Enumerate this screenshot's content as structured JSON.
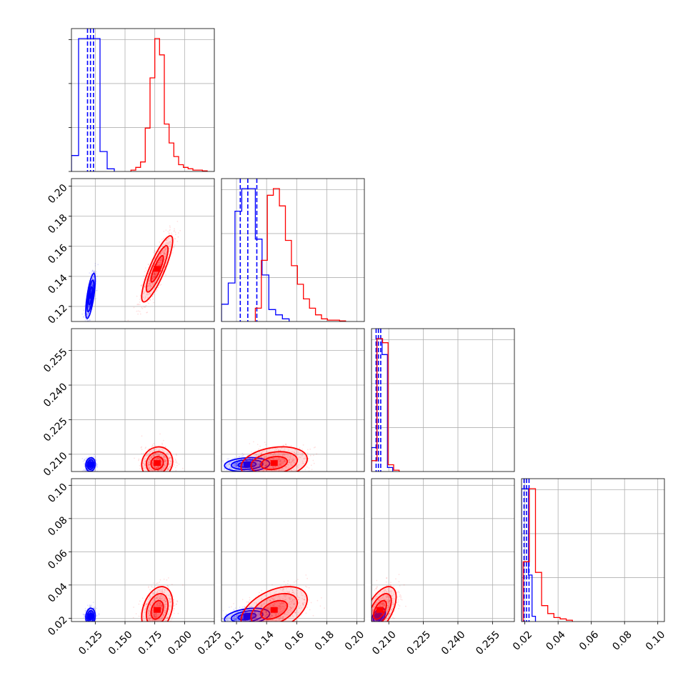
{
  "chart_data": {
    "type": "corner",
    "grid": true,
    "parameters": [
      {
        "range": [
          0.105,
          0.225
        ],
        "ticks": [
          0.125,
          0.15,
          0.175,
          0.2,
          0.225
        ],
        "tick_labels": [
          "0.125",
          "0.150",
          "0.175",
          "0.200",
          "0.225"
        ]
      },
      {
        "range": [
          0.11,
          0.205
        ],
        "ticks": [
          0.12,
          0.14,
          0.16,
          0.18,
          0.2
        ],
        "tick_labels": [
          "0.12",
          "0.14",
          "0.16",
          "0.18",
          "0.20"
        ]
      },
      {
        "range": [
          0.2025,
          0.2645
        ],
        "ticks": [
          0.21,
          0.225,
          0.24,
          0.255
        ],
        "tick_labels": [
          "0.210",
          "0.225",
          "0.240",
          "0.255"
        ]
      },
      {
        "range": [
          0.018,
          0.104
        ],
        "ticks": [
          0.02,
          0.04,
          0.06,
          0.08,
          0.1
        ],
        "tick_labels": [
          "0.02",
          "0.04",
          "0.06",
          "0.08",
          "0.10"
        ]
      }
    ],
    "series": [
      {
        "color": "#0000ff",
        "centers": [
          0.121,
          0.127,
          0.2055,
          0.021
        ],
        "spreads": [
          0.002,
          0.0075,
          0.0015,
          0.0025
        ],
        "correlations": [
          [
            0,
            1,
            0.7
          ],
          [
            0,
            2,
            0.1
          ],
          [
            0,
            3,
            0.1
          ],
          [
            1,
            2,
            0.15
          ],
          [
            1,
            3,
            0.35
          ],
          [
            2,
            3,
            0.5
          ]
        ],
        "quantile_lines": [
          [
            0.1185,
            0.121,
            0.1235
          ],
          [
            0.1225,
            0.1275,
            0.1335
          ],
          [
            0.2045,
            0.2055,
            0.2065
          ],
          [
            0.0195,
            0.021,
            0.0225
          ]
        ],
        "histograms": [
          {
            "edges": [
              0.105,
              0.111,
              0.117,
              0.123,
              0.129,
              0.135,
              0.141
            ],
            "counts": [
              0.12,
              1.0,
              1.0,
              1.0,
              0.15,
              0.02
            ]
          },
          {
            "edges": [
              0.11,
              0.1145,
              0.119,
              0.1235,
              0.128,
              0.1325,
              0.137,
              0.1415,
              0.146,
              0.1505,
              0.155
            ],
            "counts": [
              0.13,
              0.29,
              0.83,
              1.0,
              1.0,
              0.62,
              0.35,
              0.09,
              0.05,
              0.02
            ]
          },
          {
            "edges": [
              0.2025,
              0.2048,
              0.2071,
              0.2094,
              0.2117
            ],
            "counts": [
              0.18,
              1.0,
              0.88,
              0.03
            ]
          },
          {
            "edges": [
              0.018,
              0.0201,
              0.0222,
              0.0243,
              0.0264
            ],
            "counts": [
              1.0,
              1.0,
              0.35,
              0.04
            ]
          }
        ]
      },
      {
        "color": "#ff0000",
        "centers": [
          0.177,
          0.145,
          0.2062,
          0.025
        ],
        "spreads": [
          0.0065,
          0.011,
          0.0035,
          0.007
        ],
        "correlations": [
          [
            0,
            1,
            0.85
          ],
          [
            0,
            2,
            0.1
          ],
          [
            0,
            3,
            0.3
          ],
          [
            1,
            2,
            0.25
          ],
          [
            1,
            3,
            0.45
          ],
          [
            2,
            3,
            0.55
          ]
        ],
        "quantile_lines": [],
        "histograms": [
          {
            "edges": [
              0.155,
              0.159,
              0.163,
              0.167,
              0.171,
              0.175,
              0.179,
              0.183,
              0.187,
              0.191,
              0.195,
              0.199,
              0.203,
              0.207,
              0.211,
              0.215,
              0.219
            ],
            "counts": [
              0.01,
              0.03,
              0.07,
              0.32,
              0.69,
              0.98,
              0.86,
              0.35,
              0.21,
              0.11,
              0.05,
              0.03,
              0.02,
              0.01,
              0.01,
              0.005
            ]
          },
          {
            "edges": [
              0.1325,
              0.1365,
              0.1405,
              0.1445,
              0.1485,
              0.1525,
              0.1565,
              0.1605,
              0.1645,
              0.1685,
              0.1725,
              0.1765,
              0.1805,
              0.1845,
              0.1885,
              0.1925
            ],
            "counts": [
              0.1,
              0.46,
              0.95,
              1.0,
              0.87,
              0.61,
              0.42,
              0.28,
              0.17,
              0.1,
              0.05,
              0.02,
              0.01,
              0.01,
              0.005
            ]
          },
          {
            "edges": [
              0.2025,
              0.2049,
              0.2073,
              0.2097,
              0.2121,
              0.2145
            ],
            "counts": [
              0.08,
              0.98,
              0.95,
              0.05,
              0.01
            ]
          },
          {
            "edges": [
              0.019,
              0.0227,
              0.0264,
              0.0301,
              0.0338,
              0.0375,
              0.0412,
              0.0449,
              0.0486
            ],
            "counts": [
              0.45,
              1.0,
              0.37,
              0.12,
              0.06,
              0.03,
              0.02,
              0.01
            ]
          }
        ]
      }
    ]
  }
}
